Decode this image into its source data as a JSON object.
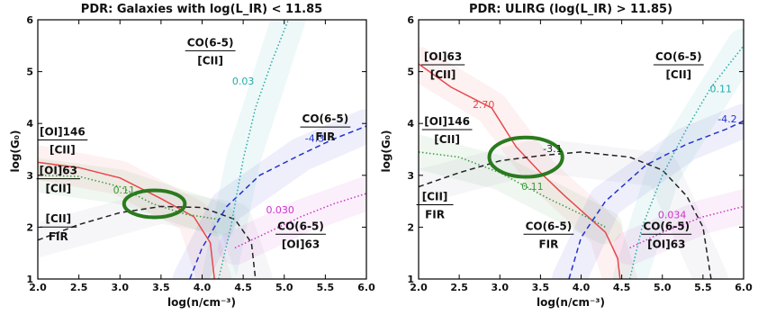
{
  "chart_data": [
    {
      "type": "line",
      "title": "PDR: Galaxies with log(L_IR) < 11.85",
      "xlabel": "log(n/cm⁻³)",
      "ylabel": "log(G₀)",
      "xlim": [
        2.0,
        6.0
      ],
      "ylim": [
        1,
        6
      ],
      "xticks": [
        "2.0",
        "2.5",
        "3.0",
        "3.5",
        "4.0",
        "4.5",
        "5.0",
        "5.5",
        "6.0"
      ],
      "yticks": [
        "1",
        "2",
        "3",
        "4",
        "5",
        "6"
      ],
      "series": [
        {
          "color": "#e8474a",
          "style": "solid",
          "points": [
            [
              2.0,
              3.25
            ],
            [
              2.5,
              3.15
            ],
            [
              3.0,
              2.95
            ],
            [
              3.5,
              2.55
            ],
            [
              3.9,
              2.2
            ],
            [
              4.1,
              1.7
            ],
            [
              4.15,
              1.0
            ]
          ]
        },
        {
          "color": "#3a9a3a",
          "style": "dotted",
          "points": [
            [
              2.0,
              3.0
            ],
            [
              2.5,
              2.98
            ],
            [
              3.0,
              2.78
            ],
            [
              3.4,
              2.45
            ],
            [
              3.8,
              2.25
            ],
            [
              4.2,
              2.15
            ]
          ]
        },
        {
          "color": "#222222",
          "style": "dashed",
          "points": [
            [
              2.0,
              1.75
            ],
            [
              2.5,
              2.05
            ],
            [
              3.0,
              2.28
            ],
            [
              3.5,
              2.4
            ],
            [
              4.0,
              2.38
            ],
            [
              4.4,
              2.15
            ],
            [
              4.6,
              1.7
            ],
            [
              4.65,
              1.0
            ]
          ]
        },
        {
          "color": "#2233cc",
          "style": "dashed",
          "points": [
            [
              3.85,
              1.0
            ],
            [
              4.0,
              1.6
            ],
            [
              4.3,
              2.4
            ],
            [
              4.7,
              3.0
            ],
            [
              5.2,
              3.4
            ],
            [
              5.6,
              3.7
            ],
            [
              6.0,
              3.95
            ]
          ]
        },
        {
          "color": "#22aaaa",
          "style": "dotted",
          "points": [
            [
              4.2,
              1.0
            ],
            [
              4.35,
              2.0
            ],
            [
              4.5,
              3.3
            ],
            [
              4.65,
              4.3
            ],
            [
              4.85,
              5.2
            ],
            [
              5.05,
              6.0
            ]
          ]
        },
        {
          "color": "#cc33cc",
          "style": "dotted",
          "points": [
            [
              4.4,
              1.6
            ],
            [
              4.8,
              1.9
            ],
            [
              5.2,
              2.2
            ],
            [
              5.6,
              2.45
            ],
            [
              6.0,
              2.65
            ]
          ]
        }
      ],
      "contour_labels": [
        {
          "text": "0.11",
          "color": "#3a9a3a",
          "x": 3.05,
          "y": 2.65
        },
        {
          "text": "-4.3",
          "color": "#2233cc",
          "x": 5.37,
          "y": 3.65
        },
        {
          "text": "0.03",
          "color": "#22aaaa",
          "x": 4.5,
          "y": 4.75
        },
        {
          "text": "0.030",
          "color": "#cc33cc",
          "x": 4.95,
          "y": 2.27
        }
      ],
      "ratio_labels": [
        {
          "num": "CO(6-5)",
          "den": "[CII]",
          "x": 4.1,
          "y": 5.42
        },
        {
          "num": "CO(6-5)",
          "den": "FIR",
          "x": 5.5,
          "y": 3.95
        },
        {
          "num": "[OI]146",
          "den": "[CII]",
          "x": 2.3,
          "y": 3.7
        },
        {
          "num": "[OI]63",
          "den": "[CII]",
          "x": 2.25,
          "y": 2.95
        },
        {
          "num": "[CII]",
          "den": "FIR",
          "x": 2.25,
          "y": 2.02
        },
        {
          "num": "CO(6-5)",
          "den": "[OI]63",
          "x": 5.2,
          "y": 1.88
        }
      ],
      "ellipse": {
        "cx": 3.42,
        "cy": 2.45,
        "rx": 0.37,
        "ry": 0.26,
        "color": "#2a7a1e"
      },
      "bands": [
        {
          "color": "#e8474a",
          "points": [
            [
              2.0,
              3.25
            ],
            [
              3.0,
              2.95
            ],
            [
              3.9,
              2.2
            ],
            [
              4.15,
              1.0
            ]
          ]
        },
        {
          "color": "#3a9a3a",
          "points": [
            [
              2.0,
              3.0
            ],
            [
              3.0,
              2.78
            ],
            [
              4.2,
              2.15
            ]
          ]
        },
        {
          "color": "#8888aa",
          "points": [
            [
              2.0,
              1.75
            ],
            [
              3.5,
              2.4
            ],
            [
              4.4,
              2.15
            ],
            [
              4.65,
              1.0
            ]
          ]
        },
        {
          "color": "#2233cc",
          "points": [
            [
              3.85,
              1.0
            ],
            [
              4.3,
              2.4
            ],
            [
              5.2,
              3.4
            ],
            [
              6.0,
              3.95
            ]
          ]
        },
        {
          "color": "#22aaaa",
          "points": [
            [
              4.2,
              1.0
            ],
            [
              4.5,
              3.3
            ],
            [
              5.05,
              6.0
            ]
          ]
        },
        {
          "color": "#cc33cc",
          "points": [
            [
              4.4,
              1.6
            ],
            [
              5.2,
              2.2
            ],
            [
              6.0,
              2.65
            ]
          ]
        }
      ]
    },
    {
      "type": "line",
      "title": "PDR: ULIRG (log(L_IR) > 11.85)",
      "xlabel": "log(n/cm⁻³)",
      "ylabel": "log(G₀)",
      "xlim": [
        2.0,
        6.0
      ],
      "ylim": [
        1,
        6
      ],
      "xticks": [
        "2.0",
        "2.5",
        "3.0",
        "3.5",
        "4.0",
        "4.5",
        "5.0",
        "5.5",
        "6.0"
      ],
      "yticks": [
        "1",
        "2",
        "3",
        "4",
        "5",
        "6"
      ],
      "series": [
        {
          "color": "#e8474a",
          "style": "solid",
          "points": [
            [
              2.0,
              5.15
            ],
            [
              2.4,
              4.7
            ],
            [
              2.9,
              4.3
            ],
            [
              3.2,
              3.55
            ],
            [
              3.5,
              3.05
            ],
            [
              3.8,
              2.6
            ],
            [
              4.3,
              1.9
            ],
            [
              4.45,
              1.4
            ],
            [
              4.48,
              1.0
            ]
          ]
        },
        {
          "color": "#3a9a3a",
          "style": "dotted",
          "points": [
            [
              2.0,
              3.45
            ],
            [
              2.5,
              3.35
            ],
            [
              3.0,
              3.05
            ],
            [
              3.3,
              2.8
            ],
            [
              3.6,
              2.55
            ],
            [
              4.0,
              2.25
            ],
            [
              4.3,
              2.0
            ]
          ]
        },
        {
          "color": "#222222",
          "style": "dashed",
          "points": [
            [
              2.0,
              2.78
            ],
            [
              2.5,
              3.05
            ],
            [
              3.0,
              3.28
            ],
            [
              3.5,
              3.38
            ],
            [
              4.0,
              3.45
            ],
            [
              4.6,
              3.35
            ],
            [
              5.0,
              3.1
            ],
            [
              5.3,
              2.6
            ],
            [
              5.5,
              2.0
            ],
            [
              5.6,
              1.0
            ]
          ]
        },
        {
          "color": "#2233cc",
          "style": "dashed",
          "points": [
            [
              3.85,
              1.0
            ],
            [
              4.0,
              1.8
            ],
            [
              4.3,
              2.5
            ],
            [
              4.8,
              3.2
            ],
            [
              5.3,
              3.6
            ],
            [
              5.8,
              3.9
            ],
            [
              6.0,
              4.05
            ]
          ]
        },
        {
          "color": "#22aaaa",
          "style": "dotted",
          "points": [
            [
              4.6,
              1.0
            ],
            [
              4.75,
              2.0
            ],
            [
              5.0,
              3.0
            ],
            [
              5.3,
              3.9
            ],
            [
              5.6,
              4.7
            ],
            [
              6.0,
              5.5
            ]
          ]
        },
        {
          "color": "#cc33cc",
          "style": "dotted",
          "points": [
            [
              4.6,
              1.6
            ],
            [
              5.0,
              1.9
            ],
            [
              5.5,
              2.2
            ],
            [
              6.0,
              2.4
            ]
          ]
        }
      ],
      "contour_labels": [
        {
          "text": "2.70",
          "color": "#e8474a",
          "x": 2.8,
          "y": 4.3
        },
        {
          "text": "0.11",
          "color": "#3a9a3a",
          "x": 3.4,
          "y": 2.72
        },
        {
          "text": "-3.1",
          "color": "#222222",
          "x": 3.65,
          "y": 3.45
        },
        {
          "text": "-4.2",
          "color": "#2233cc",
          "x": 5.8,
          "y": 4.02
        },
        {
          "text": "0.11",
          "color": "#22aaaa",
          "x": 5.72,
          "y": 4.6
        },
        {
          "text": "0.034",
          "color": "#cc33cc",
          "x": 5.12,
          "y": 2.17
        }
      ],
      "ratio_labels": [
        {
          "num": "[OI]63",
          "den": "[CII]",
          "x": 2.3,
          "y": 5.15
        },
        {
          "num": "CO(6-5)",
          "den": "[CII]",
          "x": 5.2,
          "y": 5.15
        },
        {
          "num": "[OI]146",
          "den": "[CII]",
          "x": 2.35,
          "y": 3.9
        },
        {
          "num": "[CII]",
          "den": "FIR",
          "x": 2.2,
          "y": 2.45
        },
        {
          "num": "CO(6-5)",
          "den": "FIR",
          "x": 3.6,
          "y": 1.88
        },
        {
          "num": "CO(6-5)",
          "den": "[OI]63",
          "x": 5.05,
          "y": 1.88
        }
      ],
      "ellipse": {
        "cx": 3.32,
        "cy": 3.35,
        "rx": 0.45,
        "ry": 0.38,
        "color": "#2a7a1e"
      },
      "bands": [
        {
          "color": "#e8474a",
          "points": [
            [
              2.0,
              5.15
            ],
            [
              2.9,
              4.3
            ],
            [
              3.5,
              3.05
            ],
            [
              4.3,
              1.9
            ],
            [
              4.48,
              1.0
            ]
          ]
        },
        {
          "color": "#3a9a3a",
          "points": [
            [
              2.0,
              3.45
            ],
            [
              3.0,
              3.05
            ],
            [
              4.3,
              2.0
            ]
          ]
        },
        {
          "color": "#8888aa",
          "points": [
            [
              2.0,
              2.78
            ],
            [
              3.5,
              3.38
            ],
            [
              5.0,
              3.1
            ],
            [
              5.6,
              1.0
            ]
          ]
        },
        {
          "color": "#2233cc",
          "points": [
            [
              3.85,
              1.0
            ],
            [
              4.3,
              2.5
            ],
            [
              5.3,
              3.6
            ],
            [
              6.0,
              4.05
            ]
          ]
        },
        {
          "color": "#22aaaa",
          "points": [
            [
              4.6,
              1.0
            ],
            [
              5.0,
              3.0
            ],
            [
              6.0,
              5.5
            ]
          ]
        },
        {
          "color": "#cc33cc",
          "points": [
            [
              4.6,
              1.6
            ],
            [
              5.5,
              2.2
            ],
            [
              6.0,
              2.4
            ]
          ]
        }
      ]
    }
  ]
}
